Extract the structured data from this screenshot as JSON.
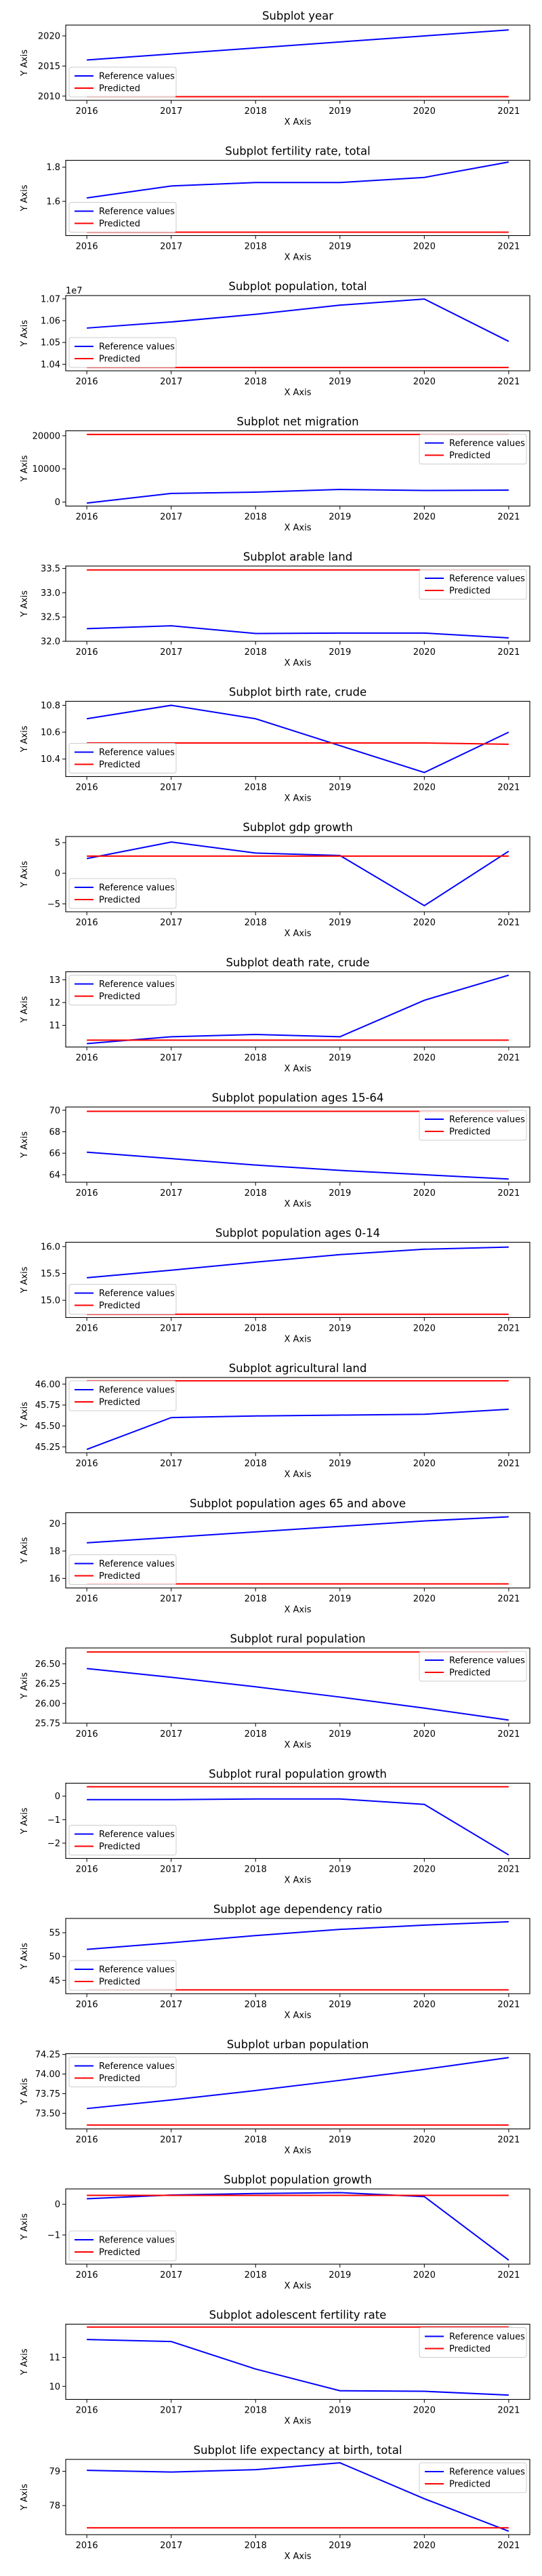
{
  "chart_data": [
    {
      "type": "line",
      "title": "Subplot year",
      "xlabel": "X Axis",
      "ylabel": "Y Axis",
      "legend_position": "lower-left",
      "x": [
        2016,
        2017,
        2018,
        2019,
        2020,
        2021
      ],
      "ylim": [
        2009.3,
        2021.8
      ],
      "yticks": [
        2010,
        2015,
        2020
      ],
      "series": [
        {
          "name": "Reference values",
          "color": "#0000ff",
          "values": [
            2016,
            2017,
            2018,
            2019,
            2020,
            2021
          ]
        },
        {
          "name": "Predicted",
          "color": "#ff0000",
          "values": [
            2009.9,
            2009.9,
            2009.9,
            2009.9,
            2009.9,
            2009.9
          ]
        }
      ]
    },
    {
      "type": "line",
      "title": "Subplot fertility rate, total",
      "xlabel": "X Axis",
      "ylabel": "Y Axis",
      "legend_position": "lower-left",
      "x": [
        2016,
        2017,
        2018,
        2019,
        2020,
        2021
      ],
      "ylim": [
        1.4,
        1.84
      ],
      "yticks": [
        1.6,
        1.8
      ],
      "ytick_labels": [
        "1.6",
        "1.8"
      ],
      "series": [
        {
          "name": "Reference values",
          "color": "#0000ff",
          "values": [
            1.62,
            1.69,
            1.71,
            1.71,
            1.74,
            1.83
          ]
        },
        {
          "name": "Predicted",
          "color": "#ff0000",
          "values": [
            1.42,
            1.42,
            1.42,
            1.42,
            1.42,
            1.42
          ]
        }
      ]
    },
    {
      "type": "line",
      "title": "Subplot population, total",
      "xlabel": "X Axis",
      "ylabel": "Y Axis",
      "legend_position": "lower-left",
      "offset_text": "1e7",
      "x": [
        2016,
        2017,
        2018,
        2019,
        2020,
        2021
      ],
      "ylim": [
        10370000,
        10715000
      ],
      "yticks": [
        10400000,
        10500000,
        10600000,
        10700000
      ],
      "ytick_labels": [
        "1.04",
        "1.05",
        "1.06",
        "1.07"
      ],
      "series": [
        {
          "name": "Reference values",
          "color": "#0000ff",
          "values": [
            10566000,
            10594000,
            10629000,
            10671000,
            10699000,
            10505000
          ]
        },
        {
          "name": "Predicted",
          "color": "#ff0000",
          "values": [
            10385000,
            10385000,
            10385000,
            10385000,
            10385000,
            10385000
          ]
        }
      ]
    },
    {
      "type": "line",
      "title": "Subplot net migration",
      "xlabel": "X Axis",
      "ylabel": "Y Axis",
      "legend_position": "upper-right",
      "x": [
        2016,
        2017,
        2018,
        2019,
        2020,
        2021
      ],
      "ylim": [
        -1200,
        21500
      ],
      "yticks": [
        0,
        10000,
        20000
      ],
      "series": [
        {
          "name": "Reference values",
          "color": "#0000ff",
          "values": [
            -300,
            2600,
            3000,
            3800,
            3500,
            3600
          ]
        },
        {
          "name": "Predicted",
          "color": "#ff0000",
          "values": [
            20400,
            20400,
            20400,
            20400,
            20400,
            20400
          ]
        }
      ]
    },
    {
      "type": "line",
      "title": "Subplot arable land",
      "xlabel": "X Axis",
      "ylabel": "Y Axis",
      "legend_position": "upper-right",
      "x": [
        2016,
        2017,
        2018,
        2019,
        2020,
        2021
      ],
      "ylim": [
        32.0,
        33.55
      ],
      "yticks": [
        32.0,
        32.5,
        33.0,
        33.5
      ],
      "ytick_labels": [
        "32.0",
        "32.5",
        "33.0",
        "33.5"
      ],
      "series": [
        {
          "name": "Reference values",
          "color": "#0000ff",
          "values": [
            32.26,
            32.32,
            32.16,
            32.17,
            32.17,
            32.07
          ]
        },
        {
          "name": "Predicted",
          "color": "#ff0000",
          "values": [
            33.47,
            33.47,
            33.47,
            33.47,
            33.47,
            33.47
          ]
        }
      ]
    },
    {
      "type": "line",
      "title": "Subplot birth rate, crude",
      "xlabel": "X Axis",
      "ylabel": "Y Axis",
      "legend_position": "lower-left",
      "x": [
        2016,
        2017,
        2018,
        2019,
        2020,
        2021
      ],
      "ylim": [
        10.27,
        10.83
      ],
      "yticks": [
        10.4,
        10.6,
        10.8
      ],
      "ytick_labels": [
        "10.4",
        "10.6",
        "10.8"
      ],
      "series": [
        {
          "name": "Reference values",
          "color": "#0000ff",
          "values": [
            10.7,
            10.8,
            10.7,
            10.5,
            10.3,
            10.6
          ]
        },
        {
          "name": "Predicted",
          "color": "#ff0000",
          "values": [
            10.52,
            10.52,
            10.52,
            10.52,
            10.52,
            10.51
          ]
        }
      ]
    },
    {
      "type": "line",
      "title": "Subplot gdp growth",
      "xlabel": "X Axis",
      "ylabel": "Y Axis",
      "legend_position": "lower-left",
      "x": [
        2016,
        2017,
        2018,
        2019,
        2020,
        2021
      ],
      "ylim": [
        -6.3,
        6.0
      ],
      "yticks": [
        -5,
        0,
        5
      ],
      "series": [
        {
          "name": "Reference values",
          "color": "#0000ff",
          "values": [
            2.4,
            5.1,
            3.3,
            2.9,
            -5.3,
            3.6
          ]
        },
        {
          "name": "Predicted",
          "color": "#ff0000",
          "values": [
            2.8,
            2.8,
            2.8,
            2.8,
            2.8,
            2.8
          ]
        }
      ]
    },
    {
      "type": "line",
      "title": "Subplot death rate, crude",
      "xlabel": "X Axis",
      "ylabel": "Y Axis",
      "legend_position": "upper-left",
      "x": [
        2016,
        2017,
        2018,
        2019,
        2020,
        2021
      ],
      "ylim": [
        10.05,
        13.35
      ],
      "yticks": [
        11,
        12,
        13
      ],
      "series": [
        {
          "name": "Reference values",
          "color": "#0000ff",
          "values": [
            10.2,
            10.5,
            10.6,
            10.5,
            12.1,
            13.2
          ]
        },
        {
          "name": "Predicted",
          "color": "#ff0000",
          "values": [
            10.35,
            10.35,
            10.35,
            10.35,
            10.35,
            10.35
          ]
        }
      ]
    },
    {
      "type": "line",
      "title": "Subplot population ages 15-64",
      "xlabel": "X Axis",
      "ylabel": "Y Axis",
      "legend_position": "upper-right",
      "x": [
        2016,
        2017,
        2018,
        2019,
        2020,
        2021
      ],
      "ylim": [
        63.3,
        70.3
      ],
      "yticks": [
        64,
        66,
        68,
        70
      ],
      "series": [
        {
          "name": "Reference values",
          "color": "#0000ff",
          "values": [
            66.1,
            65.5,
            64.9,
            64.4,
            64.0,
            63.6
          ]
        },
        {
          "name": "Predicted",
          "color": "#ff0000",
          "values": [
            69.9,
            69.9,
            69.9,
            69.9,
            69.9,
            69.9
          ]
        }
      ]
    },
    {
      "type": "line",
      "title": "Subplot population ages 0-14",
      "xlabel": "X Axis",
      "ylabel": "Y Axis",
      "legend_position": "lower-left",
      "x": [
        2016,
        2017,
        2018,
        2019,
        2020,
        2021
      ],
      "ylim": [
        14.68,
        16.08
      ],
      "yticks": [
        15.0,
        15.5,
        16.0
      ],
      "ytick_labels": [
        "15.0",
        "15.5",
        "16.0"
      ],
      "series": [
        {
          "name": "Reference values",
          "color": "#0000ff",
          "values": [
            15.42,
            15.56,
            15.71,
            15.85,
            15.95,
            15.99
          ]
        },
        {
          "name": "Predicted",
          "color": "#ff0000",
          "values": [
            14.74,
            14.74,
            14.74,
            14.74,
            14.74,
            14.74
          ]
        }
      ]
    },
    {
      "type": "line",
      "title": "Subplot agricultural land",
      "xlabel": "X Axis",
      "ylabel": "Y Axis",
      "legend_position": "upper-left",
      "x": [
        2016,
        2017,
        2018,
        2019,
        2020,
        2021
      ],
      "ylim": [
        45.18,
        46.08
      ],
      "yticks": [
        45.25,
        45.5,
        45.75,
        46.0
      ],
      "ytick_labels": [
        "45.25",
        "45.50",
        "45.75",
        "46.00"
      ],
      "series": [
        {
          "name": "Reference values",
          "color": "#0000ff",
          "values": [
            45.22,
            45.6,
            45.62,
            45.63,
            45.64,
            45.7
          ]
        },
        {
          "name": "Predicted",
          "color": "#ff0000",
          "values": [
            46.04,
            46.04,
            46.04,
            46.04,
            46.04,
            46.04
          ]
        }
      ]
    },
    {
      "type": "line",
      "title": "Subplot population ages 65 and above",
      "xlabel": "X Axis",
      "ylabel": "Y Axis",
      "legend_position": "lower-left",
      "x": [
        2016,
        2017,
        2018,
        2019,
        2020,
        2021
      ],
      "ylim": [
        15.3,
        20.8
      ],
      "yticks": [
        16,
        18,
        20
      ],
      "series": [
        {
          "name": "Reference values",
          "color": "#0000ff",
          "values": [
            18.6,
            19.0,
            19.4,
            19.8,
            20.2,
            20.5
          ]
        },
        {
          "name": "Predicted",
          "color": "#ff0000",
          "values": [
            15.6,
            15.6,
            15.6,
            15.6,
            15.6,
            15.6
          ]
        }
      ]
    },
    {
      "type": "line",
      "title": "Subplot rural population",
      "xlabel": "X Axis",
      "ylabel": "Y Axis",
      "legend_position": "upper-right",
      "x": [
        2016,
        2017,
        2018,
        2019,
        2020,
        2021
      ],
      "ylim": [
        25.75,
        26.7
      ],
      "yticks": [
        25.75,
        26.0,
        26.25,
        26.5
      ],
      "ytick_labels": [
        "25.75",
        "26.00",
        "26.25",
        "26.50"
      ],
      "series": [
        {
          "name": "Reference values",
          "color": "#0000ff",
          "values": [
            26.44,
            26.33,
            26.21,
            26.08,
            25.94,
            25.79
          ]
        },
        {
          "name": "Predicted",
          "color": "#ff0000",
          "values": [
            26.65,
            26.65,
            26.65,
            26.65,
            26.65,
            26.65
          ]
        }
      ]
    },
    {
      "type": "line",
      "title": "Subplot rural population growth",
      "xlabel": "X Axis",
      "ylabel": "Y Axis",
      "legend_position": "lower-left",
      "x": [
        2016,
        2017,
        2018,
        2019,
        2020,
        2021
      ],
      "ylim": [
        -2.65,
        0.55
      ],
      "yticks": [
        -2,
        -1,
        0
      ],
      "series": [
        {
          "name": "Reference values",
          "color": "#0000ff",
          "values": [
            -0.15,
            -0.15,
            -0.12,
            -0.12,
            -0.35,
            -2.5
          ]
        },
        {
          "name": "Predicted",
          "color": "#ff0000",
          "values": [
            0.4,
            0.4,
            0.4,
            0.4,
            0.4,
            0.4
          ]
        }
      ]
    },
    {
      "type": "line",
      "title": "Subplot age dependency ratio",
      "xlabel": "X Axis",
      "ylabel": "Y Axis",
      "legend_position": "lower-left",
      "x": [
        2016,
        2017,
        2018,
        2019,
        2020,
        2021
      ],
      "ylim": [
        42.2,
        58.0
      ],
      "yticks": [
        45,
        50,
        55
      ],
      "series": [
        {
          "name": "Reference values",
          "color": "#0000ff",
          "values": [
            51.5,
            52.9,
            54.4,
            55.7,
            56.6,
            57.3
          ]
        },
        {
          "name": "Predicted",
          "color": "#ff0000",
          "values": [
            43.0,
            43.0,
            43.0,
            43.0,
            43.0,
            43.0
          ]
        }
      ]
    },
    {
      "type": "line",
      "title": "Subplot urban population",
      "xlabel": "X Axis",
      "ylabel": "Y Axis",
      "legend_position": "upper-left",
      "x": [
        2016,
        2017,
        2018,
        2019,
        2020,
        2021
      ],
      "ylim": [
        73.3,
        74.26
      ],
      "yticks": [
        73.5,
        73.75,
        74.0,
        74.25
      ],
      "ytick_labels": [
        "73.50",
        "73.75",
        "74.00",
        "74.25"
      ],
      "series": [
        {
          "name": "Reference values",
          "color": "#0000ff",
          "values": [
            73.56,
            73.67,
            73.79,
            73.92,
            74.06,
            74.21
          ]
        },
        {
          "name": "Predicted",
          "color": "#ff0000",
          "values": [
            73.35,
            73.35,
            73.35,
            73.35,
            73.35,
            73.35
          ]
        }
      ]
    },
    {
      "type": "line",
      "title": "Subplot population growth",
      "xlabel": "X Axis",
      "ylabel": "Y Axis",
      "legend_position": "lower-left",
      "x": [
        2016,
        2017,
        2018,
        2019,
        2020,
        2021
      ],
      "ylim": [
        -1.95,
        0.5
      ],
      "yticks": [
        -1,
        0
      ],
      "series": [
        {
          "name": "Reference values",
          "color": "#0000ff",
          "values": [
            0.18,
            0.3,
            0.35,
            0.38,
            0.25,
            -1.82
          ]
        },
        {
          "name": "Predicted",
          "color": "#ff0000",
          "values": [
            0.29,
            0.29,
            0.29,
            0.29,
            0.29,
            0.29
          ]
        }
      ]
    },
    {
      "type": "line",
      "title": "Subplot adolescent fertility rate",
      "xlabel": "X Axis",
      "ylabel": "Y Axis",
      "legend_position": "upper-right",
      "x": [
        2016,
        2017,
        2018,
        2019,
        2020,
        2021
      ],
      "ylim": [
        9.55,
        12.15
      ],
      "yticks": [
        10,
        11
      ],
      "series": [
        {
          "name": "Reference values",
          "color": "#0000ff",
          "values": [
            11.62,
            11.55,
            10.6,
            9.85,
            9.83,
            9.7
          ]
        },
        {
          "name": "Predicted",
          "color": "#ff0000",
          "values": [
            12.05,
            12.05,
            12.05,
            12.05,
            12.05,
            12.05
          ]
        }
      ]
    },
    {
      "type": "line",
      "title": "Subplot life expectancy at birth, total",
      "xlabel": "X Axis",
      "ylabel": "Y Axis",
      "legend_position": "upper-right",
      "x": [
        2016,
        2017,
        2018,
        2019,
        2020,
        2021
      ],
      "ylim": [
        77.15,
        79.35
      ],
      "yticks": [
        78,
        79
      ],
      "series": [
        {
          "name": "Reference values",
          "color": "#0000ff",
          "values": [
            79.03,
            78.98,
            79.05,
            79.25,
            78.2,
            77.25
          ]
        },
        {
          "name": "Predicted",
          "color": "#ff0000",
          "values": [
            77.35,
            77.35,
            77.35,
            77.35,
            77.35,
            77.35
          ]
        }
      ]
    }
  ]
}
